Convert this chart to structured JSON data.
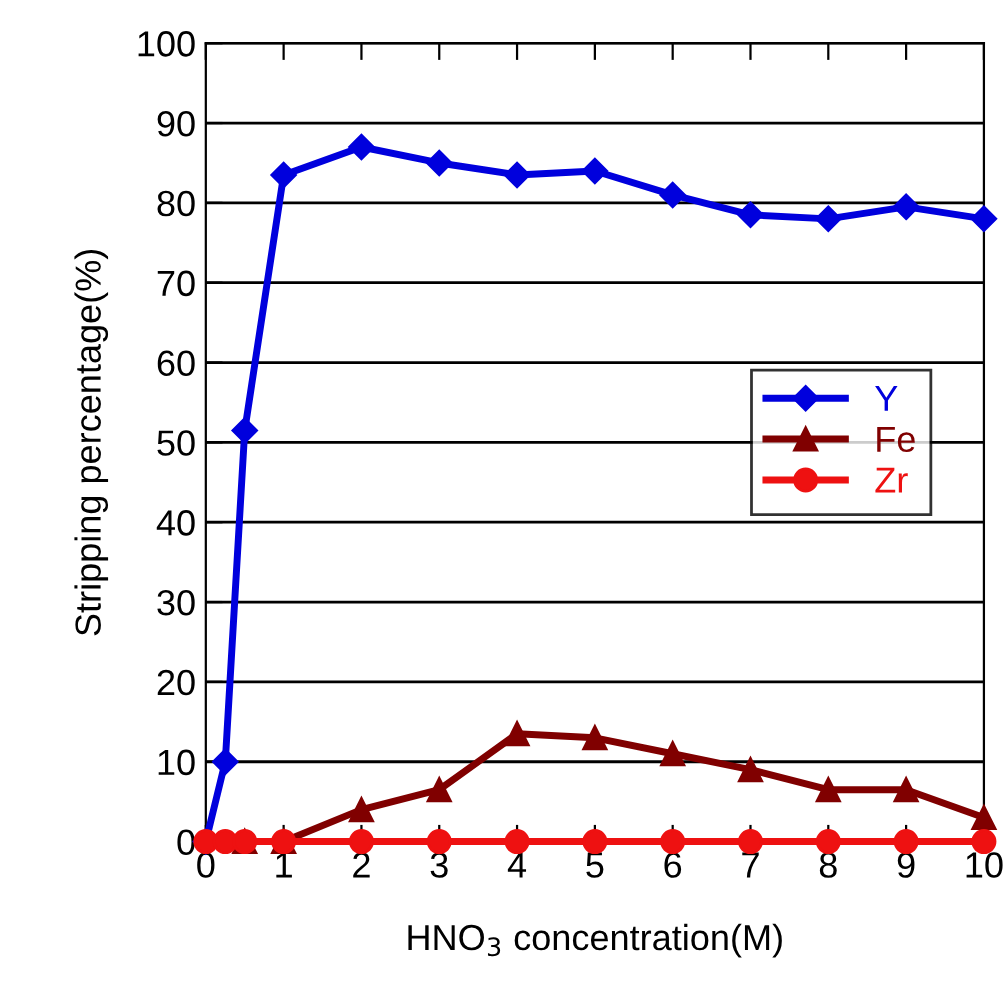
{
  "chart_data": {
    "type": "line",
    "xlabel": "HNO$_{3}$ concentration(M)",
    "ylabel": "Stripping percentage(%)",
    "xlim": [
      0,
      10
    ],
    "xticks": [
      0,
      1,
      2,
      3,
      4,
      5,
      6,
      7,
      8,
      9,
      10
    ],
    "ylim": [
      0,
      100
    ],
    "yticks": [
      0,
      10,
      20,
      30,
      40,
      50,
      60,
      70,
      80,
      90,
      100
    ],
    "grid": "y",
    "legend": "right",
    "series": [
      {
        "name": "Y",
        "color": "#0000dd",
        "marker": "diamond",
        "x": [
          0,
          0.25,
          0.5,
          1,
          2,
          3,
          4,
          5,
          6,
          7,
          8,
          9,
          10
        ],
        "values": [
          0,
          10,
          51.5,
          83.5,
          87,
          85,
          83.5,
          84,
          81,
          78.5,
          78,
          79.5,
          78
        ]
      },
      {
        "name": "Fe",
        "color": "#800000",
        "marker": "triangle",
        "x": [
          0.5,
          1,
          2,
          3,
          4,
          5,
          6,
          7,
          8,
          9,
          10
        ],
        "values": [
          0,
          0,
          4,
          6.5,
          13.5,
          13,
          11,
          9,
          6.5,
          6.5,
          3
        ]
      },
      {
        "name": "Zr",
        "color": "#ee1111",
        "marker": "circle",
        "x": [
          0,
          0.25,
          0.5,
          1,
          2,
          3,
          4,
          5,
          6,
          7,
          8,
          9,
          10
        ],
        "values": [
          0,
          0,
          0,
          0,
          0,
          0,
          0,
          0,
          0,
          0,
          0,
          0,
          0
        ]
      }
    ]
  }
}
